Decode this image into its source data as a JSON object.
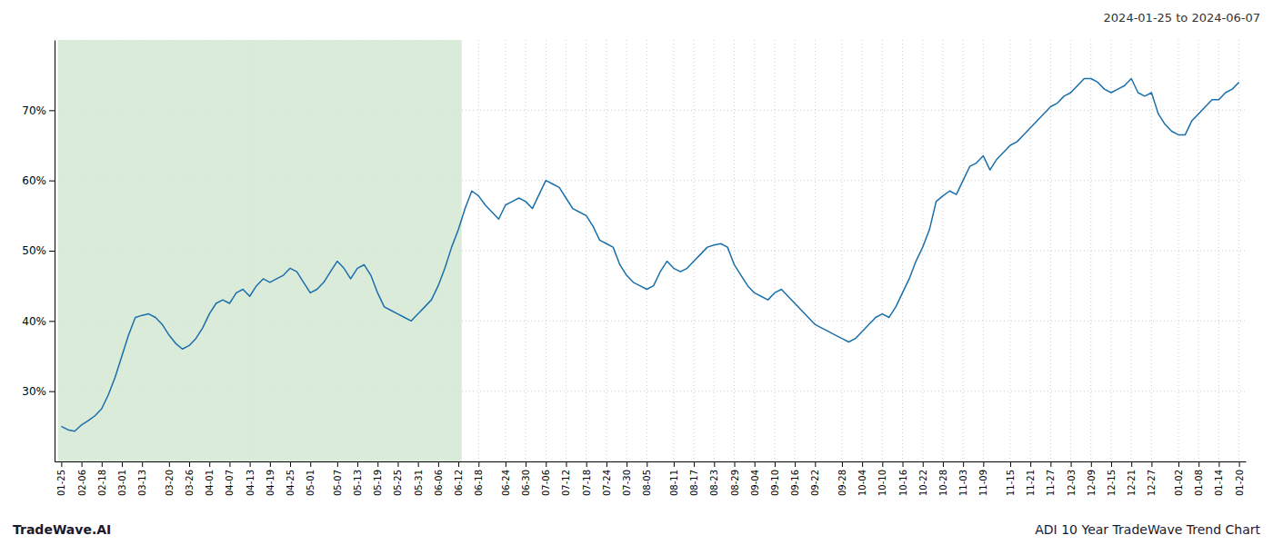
{
  "chart_data": {
    "type": "line",
    "title": "ADI 10 Year TradeWave Trend Chart",
    "subtitle": "2024-01-25 to 2024-06-07",
    "annotations": [
      "TradeWave.AI"
    ],
    "categories": [
      "01-25",
      null,
      null,
      "02-06",
      null,
      null,
      "02-18",
      null,
      null,
      "03-01",
      null,
      null,
      "03-13",
      null,
      null,
      null,
      "03-20",
      null,
      null,
      "03-26",
      null,
      null,
      "04-01",
      null,
      null,
      "04-07",
      null,
      null,
      "04-13",
      null,
      null,
      "04-19",
      null,
      null,
      "04-25",
      null,
      null,
      "05-01",
      null,
      null,
      null,
      "05-07",
      null,
      null,
      "05-13",
      null,
      null,
      "05-19",
      null,
      null,
      "05-25",
      null,
      null,
      "05-31",
      null,
      null,
      "06-06",
      null,
      null,
      "06-12",
      null,
      null,
      "06-18",
      null,
      null,
      null,
      "06-24",
      null,
      null,
      "06-30",
      null,
      null,
      "07-06",
      null,
      null,
      "07-12",
      null,
      null,
      "07-18",
      null,
      null,
      "07-24",
      null,
      null,
      "07-30",
      null,
      null,
      "08-05",
      null,
      null,
      null,
      "08-11",
      null,
      null,
      "08-17",
      null,
      null,
      "08-23",
      null,
      null,
      "08-29",
      null,
      null,
      "09-04",
      null,
      null,
      "09-10",
      null,
      null,
      "09-16",
      null,
      null,
      "09-22",
      null,
      null,
      null,
      "09-28",
      null,
      null,
      "10-04",
      null,
      null,
      "10-10",
      null,
      null,
      "10-16",
      null,
      null,
      "10-22",
      null,
      null,
      "10-28",
      null,
      null,
      "11-03",
      null,
      null,
      "11-09",
      null,
      null,
      null,
      "11-15",
      null,
      null,
      "11-21",
      null,
      null,
      "11-27",
      null,
      null,
      "12-03",
      null,
      null,
      "12-09",
      null,
      null,
      "12-15",
      null,
      null,
      "12-21",
      null,
      null,
      "12-27",
      null,
      null,
      null,
      "01-02",
      null,
      null,
      "01-08",
      null,
      null,
      "01-14",
      null,
      null,
      "01-20"
    ],
    "values": [
      25.0,
      24.5,
      24.3,
      25.2,
      25.8,
      26.5,
      27.5,
      29.5,
      32.0,
      35.0,
      38.0,
      40.5,
      40.8,
      41.0,
      40.5,
      39.5,
      38.0,
      36.8,
      36.0,
      36.5,
      37.5,
      39.0,
      41.0,
      42.5,
      43.0,
      42.5,
      44.0,
      44.5,
      43.5,
      45.0,
      46.0,
      45.5,
      46.0,
      46.5,
      47.5,
      47.0,
      45.5,
      44.0,
      44.5,
      45.5,
      47.0,
      48.5,
      47.5,
      46.0,
      47.5,
      48.0,
      46.5,
      44.0,
      42.0,
      41.5,
      41.0,
      40.5,
      40.0,
      41.0,
      42.0,
      43.0,
      45.0,
      47.5,
      50.5,
      53.0,
      56.0,
      58.5,
      57.8,
      56.5,
      55.5,
      54.5,
      56.5,
      57.0,
      57.5,
      57.0,
      56.0,
      58.0,
      60.0,
      59.5,
      59.0,
      57.5,
      56.0,
      55.5,
      55.0,
      53.5,
      51.5,
      51.0,
      50.5,
      48.0,
      46.5,
      45.5,
      45.0,
      44.5,
      45.0,
      47.0,
      48.5,
      47.5,
      47.0,
      47.5,
      48.5,
      49.5,
      50.5,
      50.8,
      51.0,
      50.5,
      48.0,
      46.5,
      45.0,
      44.0,
      43.5,
      43.0,
      44.0,
      44.5,
      43.5,
      42.5,
      41.5,
      40.5,
      39.5,
      39.0,
      38.5,
      38.0,
      37.5,
      37.0,
      37.5,
      38.5,
      39.5,
      40.5,
      41.0,
      40.5,
      42.0,
      44.0,
      46.0,
      48.5,
      50.5,
      53.0,
      57.0,
      57.8,
      58.5,
      58.0,
      60.0,
      62.0,
      62.5,
      63.5,
      61.5,
      63.0,
      64.0,
      65.0,
      65.5,
      66.5,
      67.5,
      68.5,
      69.5,
      70.5,
      71.0,
      72.0,
      72.5,
      73.5,
      74.5,
      74.5,
      74.0,
      73.0,
      72.5,
      73.0,
      73.5,
      74.5,
      72.5,
      72.0,
      72.5,
      69.5,
      68.0,
      67.0,
      66.5,
      66.5,
      68.5,
      69.5,
      70.5,
      71.5,
      71.5,
      72.5,
      73.0,
      74.0
    ],
    "color": "#1b6faa",
    "highlight": {
      "start": "01-25",
      "end": "06-12",
      "color": "#d4e8d4"
    },
    "ylim": [
      20,
      80
    ],
    "yticks": [
      {
        "value": 30,
        "label": "30%"
      },
      {
        "value": 40,
        "label": "40%"
      },
      {
        "value": 50,
        "label": "50%"
      },
      {
        "value": 60,
        "label": "60%"
      },
      {
        "value": 70,
        "label": "70%"
      }
    ],
    "grid": true
  }
}
